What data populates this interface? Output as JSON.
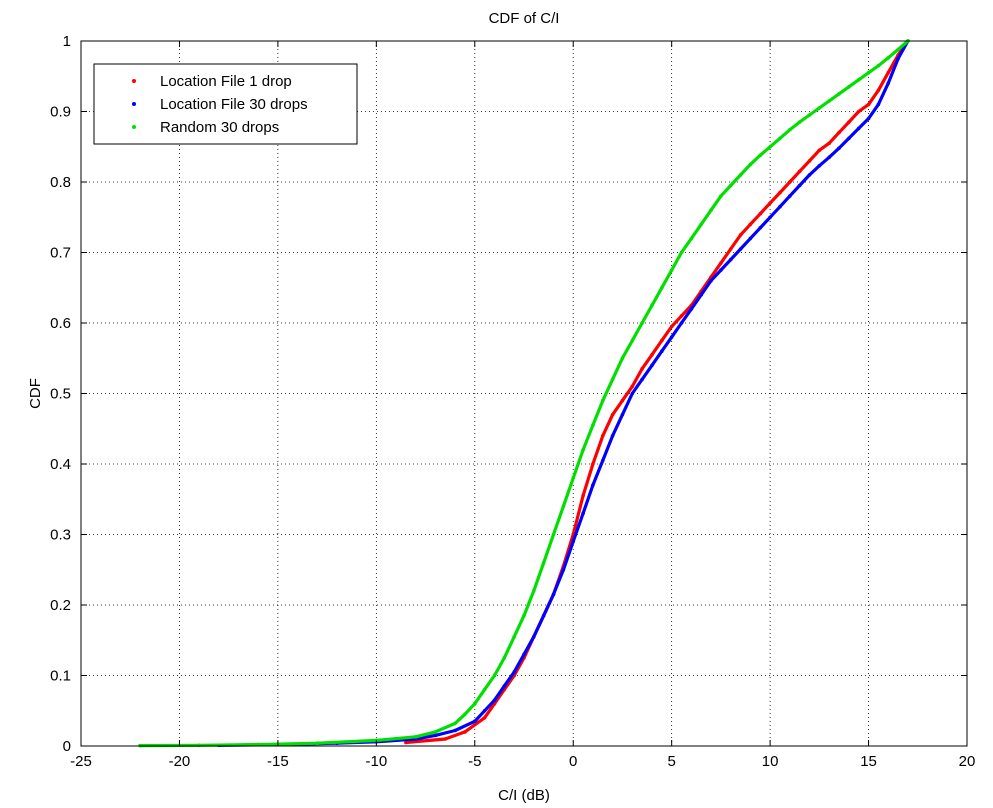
{
  "chart_data": {
    "type": "line",
    "title": "CDF of C/I",
    "xlabel": "C/I (dB)",
    "ylabel": "CDF",
    "xlim": [
      -25,
      20
    ],
    "ylim": [
      0,
      1
    ],
    "grid": true,
    "legend_position": "top-left",
    "x_ticks": [
      "-25",
      "-20",
      "-15",
      "-10",
      "-5",
      "0",
      "5",
      "10",
      "15",
      "20"
    ],
    "y_ticks": [
      "0",
      "0.1",
      "0.2",
      "0.3",
      "0.4",
      "0.5",
      "0.6",
      "0.7",
      "0.8",
      "0.9",
      "1"
    ],
    "series": [
      {
        "name": "Location File 1 drop",
        "color": "#ff0000",
        "x": [
          -8.5,
          -6.5,
          -5.5,
          -4.5,
          -4.0,
          -3.5,
          -3.0,
          -2.5,
          -2.0,
          -1.5,
          -1.0,
          -0.5,
          0.0,
          0.5,
          1.0,
          1.5,
          2.0,
          2.5,
          3.0,
          3.5,
          4.0,
          4.5,
          5.0,
          5.5,
          6.0,
          6.5,
          7.0,
          7.5,
          8.0,
          8.5,
          9.0,
          9.5,
          10.0,
          10.5,
          11.0,
          11.5,
          12.0,
          12.5,
          13.0,
          13.5,
          14.0,
          14.5,
          15.0,
          15.5,
          16.0,
          16.5,
          17.0
        ],
        "y": [
          0.005,
          0.01,
          0.02,
          0.04,
          0.06,
          0.08,
          0.1,
          0.125,
          0.155,
          0.185,
          0.215,
          0.255,
          0.3,
          0.355,
          0.4,
          0.44,
          0.47,
          0.49,
          0.51,
          0.535,
          0.555,
          0.575,
          0.595,
          0.61,
          0.625,
          0.645,
          0.665,
          0.685,
          0.705,
          0.725,
          0.74,
          0.755,
          0.77,
          0.785,
          0.8,
          0.815,
          0.83,
          0.845,
          0.855,
          0.87,
          0.885,
          0.9,
          0.91,
          0.93,
          0.955,
          0.98,
          1.0
        ]
      },
      {
        "name": "Location File 30 drops",
        "color": "#0000ff",
        "x": [
          -18.0,
          -15.0,
          -12.0,
          -10.0,
          -8.0,
          -7.0,
          -6.0,
          -5.0,
          -4.5,
          -4.0,
          -3.5,
          -3.0,
          -2.5,
          -2.0,
          -1.5,
          -1.0,
          -0.5,
          0.0,
          0.5,
          1.0,
          1.5,
          2.0,
          2.5,
          3.0,
          3.5,
          4.0,
          4.5,
          5.0,
          5.5,
          6.0,
          6.5,
          7.0,
          7.5,
          8.0,
          8.5,
          9.0,
          9.5,
          10.0,
          10.5,
          11.0,
          11.5,
          12.0,
          12.5,
          13.0,
          13.5,
          14.0,
          14.5,
          15.0,
          15.5,
          16.0,
          16.5,
          17.0
        ],
        "y": [
          0.001,
          0.002,
          0.004,
          0.006,
          0.01,
          0.015,
          0.022,
          0.035,
          0.05,
          0.065,
          0.085,
          0.105,
          0.13,
          0.155,
          0.185,
          0.215,
          0.25,
          0.29,
          0.33,
          0.37,
          0.405,
          0.44,
          0.47,
          0.5,
          0.52,
          0.54,
          0.56,
          0.58,
          0.6,
          0.62,
          0.64,
          0.66,
          0.675,
          0.69,
          0.705,
          0.72,
          0.735,
          0.75,
          0.765,
          0.78,
          0.795,
          0.81,
          0.823,
          0.835,
          0.848,
          0.862,
          0.876,
          0.89,
          0.91,
          0.94,
          0.975,
          1.0
        ]
      },
      {
        "name": "Random 30 drops",
        "color": "#00e000",
        "x": [
          -22.0,
          -19.0,
          -16.0,
          -13.0,
          -10.0,
          -8.0,
          -7.0,
          -6.0,
          -5.5,
          -5.0,
          -4.5,
          -4.0,
          -3.5,
          -3.0,
          -2.5,
          -2.0,
          -1.5,
          -1.0,
          -0.5,
          0.0,
          0.5,
          1.0,
          1.5,
          2.0,
          2.5,
          3.0,
          3.5,
          4.0,
          4.5,
          5.0,
          5.5,
          6.0,
          6.5,
          7.0,
          7.5,
          8.0,
          8.5,
          9.0,
          9.5,
          10.0,
          10.5,
          11.0,
          11.5,
          12.0,
          12.5,
          13.0,
          13.5,
          14.0,
          14.5,
          15.0,
          15.5,
          16.0,
          16.5,
          17.0
        ],
        "y": [
          0.0005,
          0.001,
          0.002,
          0.004,
          0.008,
          0.013,
          0.02,
          0.032,
          0.045,
          0.06,
          0.08,
          0.1,
          0.125,
          0.155,
          0.185,
          0.22,
          0.26,
          0.3,
          0.34,
          0.38,
          0.42,
          0.455,
          0.49,
          0.52,
          0.55,
          0.575,
          0.6,
          0.625,
          0.65,
          0.675,
          0.7,
          0.72,
          0.74,
          0.76,
          0.78,
          0.795,
          0.81,
          0.825,
          0.838,
          0.85,
          0.862,
          0.874,
          0.885,
          0.895,
          0.905,
          0.915,
          0.925,
          0.935,
          0.945,
          0.955,
          0.965,
          0.976,
          0.988,
          1.0
        ]
      }
    ]
  }
}
